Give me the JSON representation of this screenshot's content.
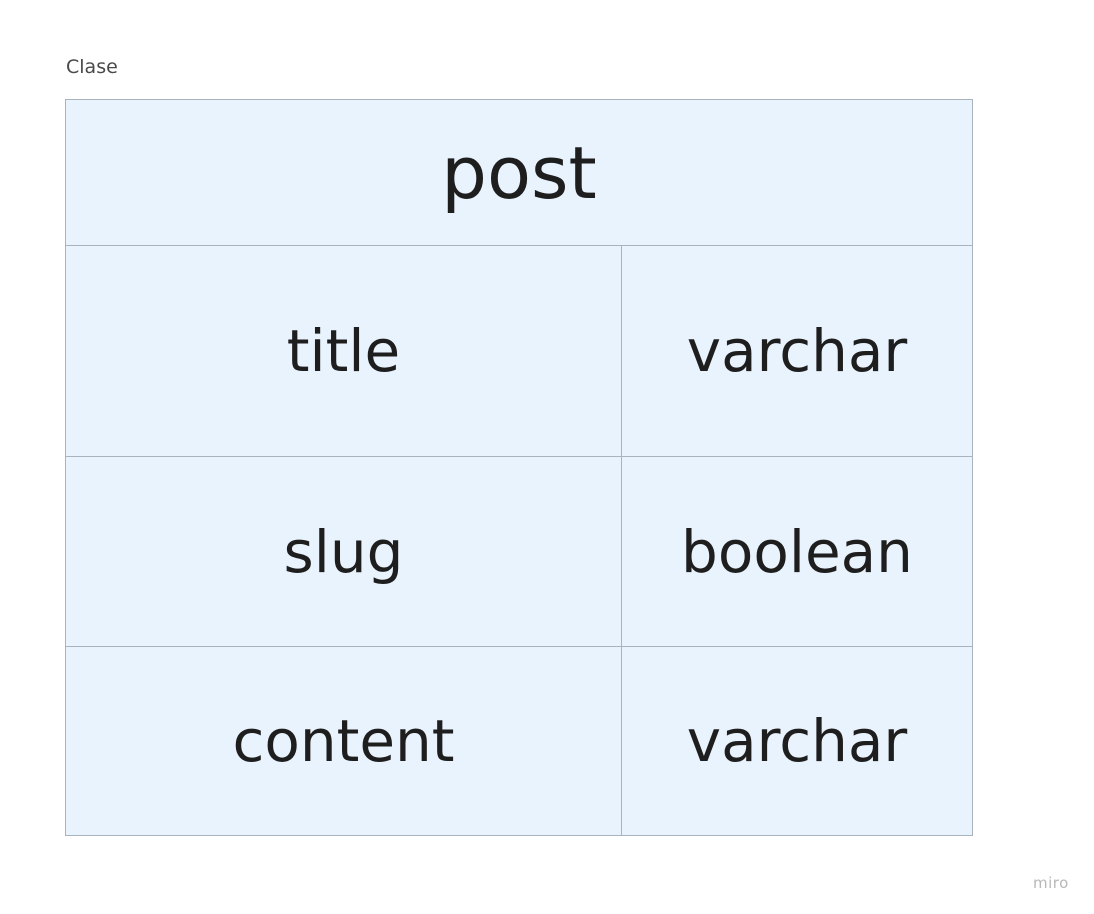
{
  "frame": {
    "label": "Clase"
  },
  "entity": {
    "name": "post",
    "fields": [
      {
        "name": "title",
        "type": "varchar"
      },
      {
        "name": "slug",
        "type": "boolean"
      },
      {
        "name": "content",
        "type": "varchar"
      }
    ]
  },
  "watermark": "miro",
  "colors": {
    "table_fill": "#e9f3fd",
    "table_border": "#a9b3bd",
    "text": "#1e1e1e"
  }
}
